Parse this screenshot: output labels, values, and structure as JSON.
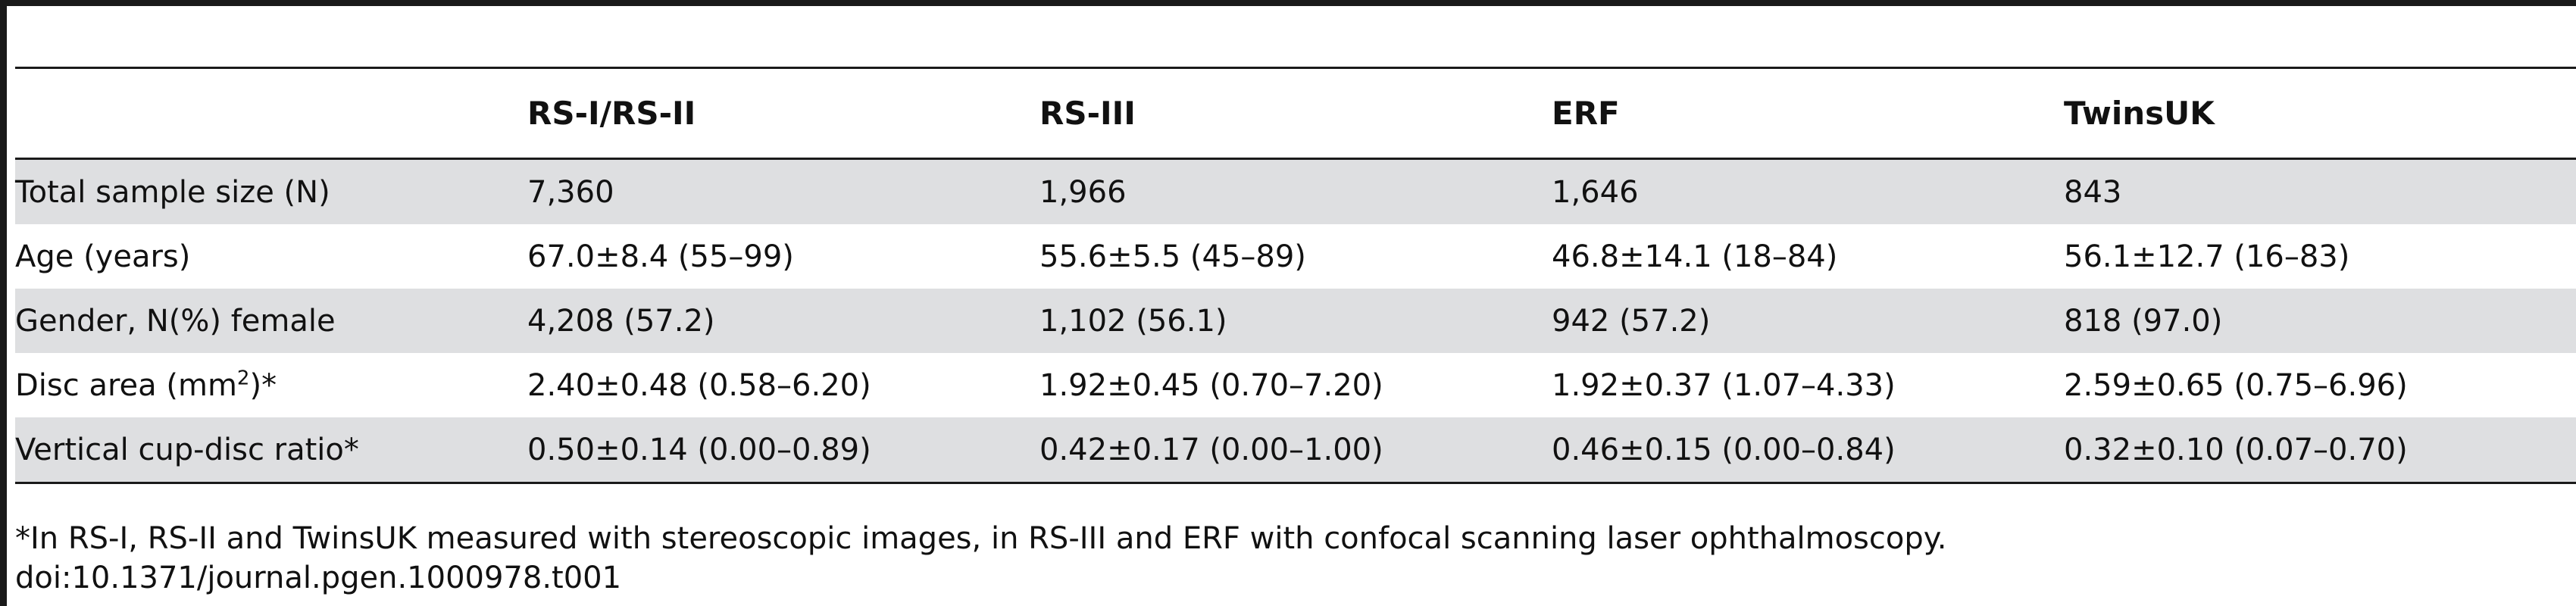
{
  "table": {
    "columns": [
      "",
      "RS-I/RS-II",
      "RS-III",
      "ERF",
      "TwinsUK"
    ],
    "rows": [
      {
        "label": "Total sample size (N)",
        "values": [
          "7,360",
          "1,966",
          "1,646",
          "843"
        ]
      },
      {
        "label": "Age (years)",
        "values": [
          "67.0±8.4 (55–99)",
          "55.6±5.5 (45–89)",
          "46.8±14.1 (18–84)",
          "56.1±12.7 (16–83)"
        ]
      },
      {
        "label": "Gender, N(%) female",
        "values": [
          "4,208 (57.2)",
          "1,102 (56.1)",
          "942 (57.2)",
          "818 (97.0)"
        ]
      },
      {
        "label_prefix": "Disc area (mm",
        "label_sup": "2",
        "label_suffix": ")*",
        "values": [
          "2.40±0.48 (0.58–6.20)",
          "1.92±0.45 (0.70–7.20)",
          "1.92±0.37 (1.07–4.33)",
          "2.59±0.65 (0.75–6.96)"
        ]
      },
      {
        "label": "Vertical cup-disc ratio*",
        "values": [
          "0.50±0.14 (0.00–0.89)",
          "0.42±0.17 (0.00–1.00)",
          "0.46±0.15 (0.00–0.84)",
          "0.32±0.10 (0.07–0.70)"
        ]
      }
    ]
  },
  "footnote": "*In RS-I, RS-II and TwinsUK measured with stereoscopic images, in RS-III and ERF with confocal scanning laser ophthalmoscopy.",
  "doi": "doi:10.1371/journal.pgen.1000978.t001"
}
